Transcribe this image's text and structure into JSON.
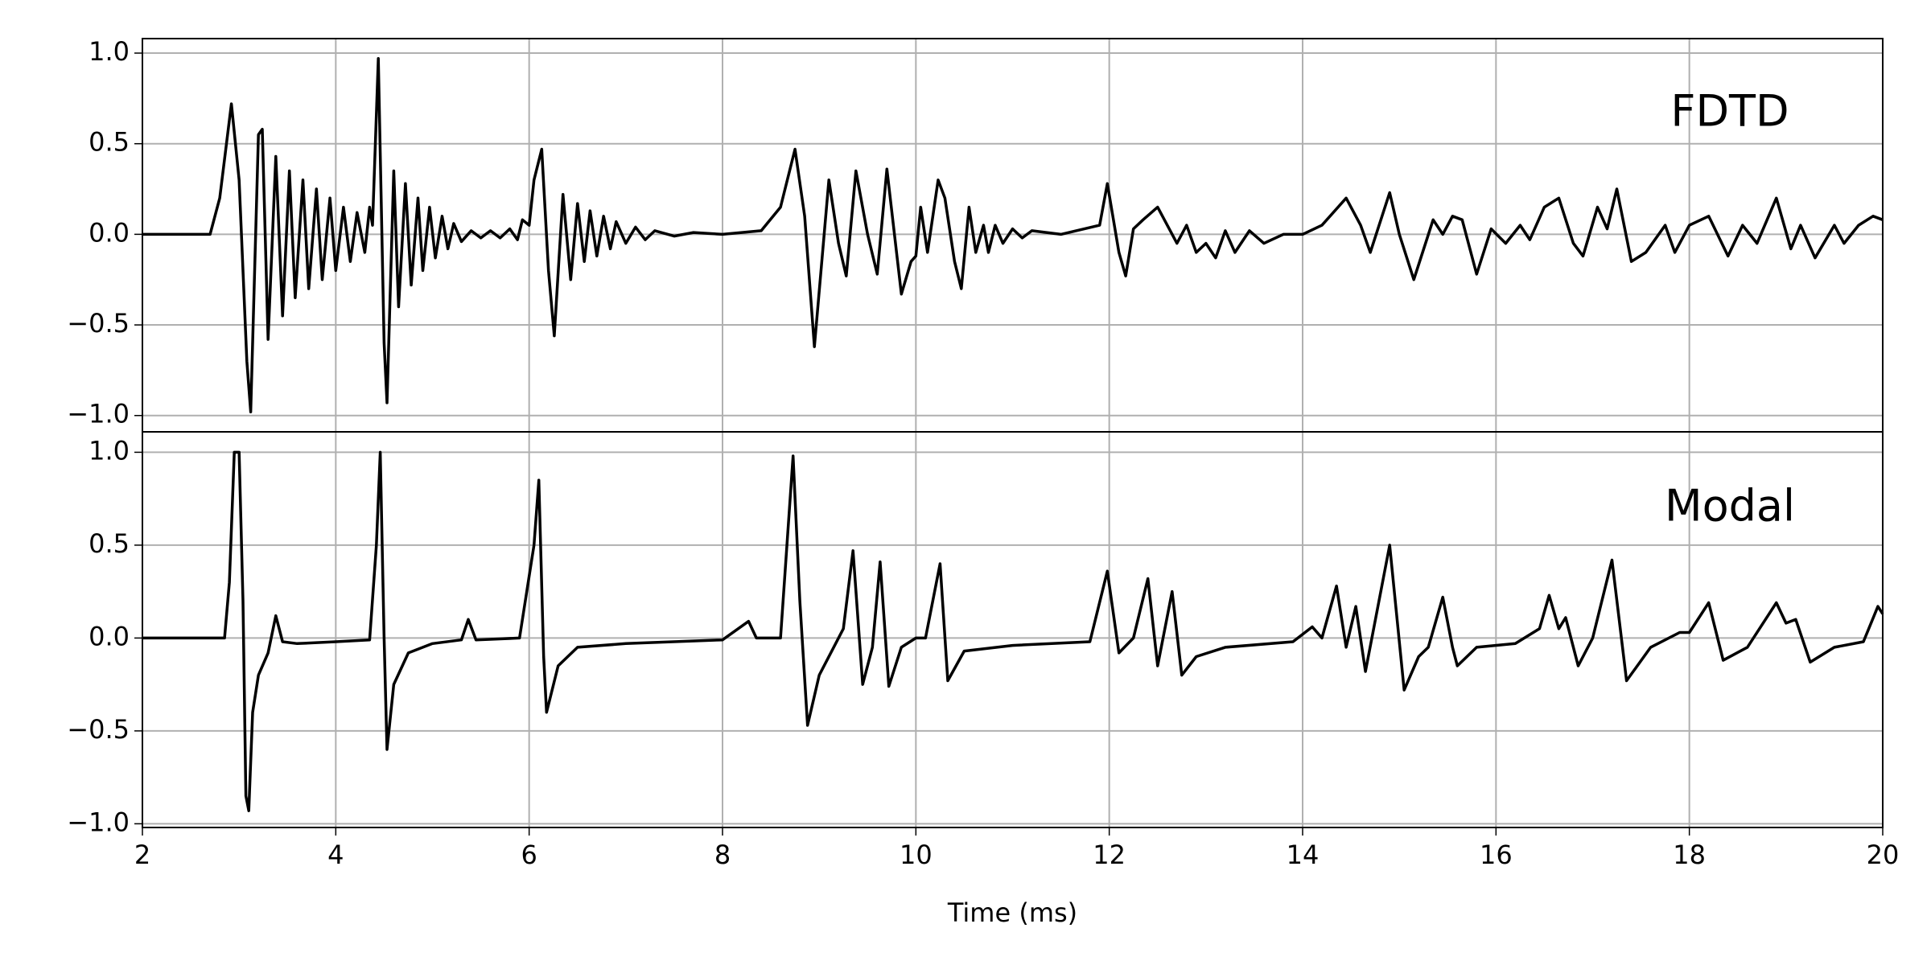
{
  "chart_data": [
    {
      "type": "line",
      "annotation": "FDTD",
      "x": [
        2.0,
        2.7,
        2.8,
        2.92,
        3.0,
        3.08,
        3.12,
        3.2,
        3.24,
        3.3,
        3.38,
        3.45,
        3.52,
        3.58,
        3.66,
        3.72,
        3.8,
        3.86,
        3.94,
        4.0,
        4.08,
        4.15,
        4.22,
        4.3,
        4.35,
        4.38,
        4.44,
        4.5,
        4.53,
        4.6,
        4.65,
        4.72,
        4.78,
        4.85,
        4.9,
        4.97,
        5.03,
        5.1,
        5.16,
        5.22,
        5.3,
        5.4,
        5.5,
        5.6,
        5.7,
        5.8,
        5.88,
        5.93,
        6.0,
        6.05,
        6.13,
        6.2,
        6.26,
        6.35,
        6.43,
        6.5,
        6.57,
        6.63,
        6.7,
        6.77,
        6.84,
        6.9,
        7.0,
        7.1,
        7.2,
        7.3,
        7.5,
        7.7,
        8.0,
        8.4,
        8.6,
        8.75,
        8.85,
        8.95,
        9.1,
        9.2,
        9.28,
        9.38,
        9.5,
        9.6,
        9.7,
        9.8,
        9.85,
        9.95,
        10.0,
        10.05,
        10.12,
        10.23,
        10.3,
        10.4,
        10.47,
        10.55,
        10.62,
        10.7,
        10.75,
        10.82,
        10.9,
        11.0,
        11.1,
        11.2,
        11.5,
        11.9,
        11.98,
        12.1,
        12.17,
        12.25,
        12.35,
        12.5,
        12.6,
        12.7,
        12.8,
        12.9,
        13.0,
        13.1,
        13.2,
        13.3,
        13.45,
        13.6,
        13.8,
        14.0,
        14.2,
        14.45,
        14.6,
        14.7,
        14.9,
        15.0,
        15.15,
        15.35,
        15.45,
        15.55,
        15.65,
        15.8,
        15.95,
        16.1,
        16.25,
        16.35,
        16.5,
        16.65,
        16.8,
        16.9,
        17.05,
        17.15,
        17.25,
        17.4,
        17.55,
        17.75,
        17.85,
        18.0,
        18.2,
        18.4,
        18.55,
        18.7,
        18.9,
        19.05,
        19.15,
        19.3,
        19.5,
        19.6,
        19.75,
        19.9,
        20.0
      ],
      "series": [
        {
          "color": "#000000",
          "values": [
            0,
            0,
            0.2,
            0.72,
            0.3,
            -0.7,
            -0.98,
            0.55,
            0.58,
            -0.58,
            0.43,
            -0.45,
            0.35,
            -0.35,
            0.3,
            -0.3,
            0.25,
            -0.25,
            0.2,
            -0.2,
            0.15,
            -0.15,
            0.12,
            -0.1,
            0.15,
            0.05,
            0.97,
            -0.6,
            -0.93,
            0.35,
            -0.4,
            0.28,
            -0.28,
            0.2,
            -0.2,
            0.15,
            -0.13,
            0.1,
            -0.08,
            0.06,
            -0.04,
            0.02,
            -0.02,
            0.02,
            -0.02,
            0.03,
            -0.03,
            0.08,
            0.05,
            0.3,
            0.47,
            -0.2,
            -0.56,
            0.22,
            -0.25,
            0.17,
            -0.15,
            0.13,
            -0.12,
            0.1,
            -0.08,
            0.07,
            -0.05,
            0.04,
            -0.03,
            0.02,
            -0.01,
            0.01,
            0,
            0.02,
            0.15,
            0.47,
            0.1,
            -0.62,
            0.3,
            -0.05,
            -0.23,
            0.35,
            0,
            -0.22,
            0.36,
            -0.1,
            -0.33,
            -0.15,
            -0.12,
            0.15,
            -0.1,
            0.3,
            0.2,
            -0.15,
            -0.3,
            0.15,
            -0.1,
            0.05,
            -0.1,
            0.05,
            -0.05,
            0.03,
            -0.02,
            0.02,
            0,
            0.05,
            0.28,
            -0.1,
            -0.23,
            0.03,
            0.08,
            0.15,
            0.05,
            -0.05,
            0.05,
            -0.1,
            -0.05,
            -0.13,
            0.02,
            -0.1,
            0.02,
            -0.05,
            0,
            0,
            0.05,
            0.2,
            0.05,
            -0.1,
            0.23,
            0,
            -0.25,
            0.08,
            0,
            0.1,
            0.08,
            -0.22,
            0.03,
            -0.05,
            0.05,
            -0.03,
            0.15,
            0.2,
            -0.05,
            -0.12,
            0.15,
            0.03,
            0.25,
            -0.15,
            -0.1,
            0.05,
            -0.1,
            0.05,
            0.1,
            -0.12,
            0.05,
            -0.05,
            0.2,
            -0.08,
            0.05,
            -0.13,
            0.05,
            -0.05,
            0.05,
            0.1,
            0.08
          ]
        }
      ],
      "xlim": [
        2,
        20
      ],
      "ylim": [
        -1.09,
        1.08
      ],
      "yticks": [
        {
          "value": -1,
          "label": "−1.0"
        },
        {
          "value": -0.5,
          "label": "−0.5"
        },
        {
          "value": 0,
          "label": "0.0"
        },
        {
          "value": 0.5,
          "label": "0.5"
        },
        {
          "value": 1,
          "label": "1.0"
        }
      ],
      "grid": true
    },
    {
      "type": "line",
      "annotation": "Modal",
      "xlabel": "Time (ms)",
      "x": [
        2.0,
        2.85,
        2.9,
        2.95,
        3.0,
        3.04,
        3.07,
        3.1,
        3.14,
        3.2,
        3.3,
        3.38,
        3.45,
        3.6,
        4.0,
        4.35,
        4.42,
        4.46,
        4.5,
        4.53,
        4.6,
        4.75,
        5.0,
        5.3,
        5.37,
        5.45,
        5.9,
        6.05,
        6.1,
        6.15,
        6.18,
        6.3,
        6.5,
        7.0,
        8.0,
        8.27,
        8.35,
        8.6,
        8.73,
        8.8,
        8.88,
        9.0,
        9.15,
        9.25,
        9.35,
        9.45,
        9.55,
        9.63,
        9.72,
        9.85,
        10.0,
        10.1,
        10.25,
        10.33,
        10.5,
        11.0,
        11.8,
        11.98,
        12.1,
        12.25,
        12.4,
        12.5,
        12.65,
        12.75,
        12.9,
        13.2,
        13.9,
        14.1,
        14.2,
        14.35,
        14.45,
        14.55,
        14.65,
        14.9,
        15.05,
        15.2,
        15.3,
        15.45,
        15.55,
        15.6,
        15.8,
        16.2,
        16.45,
        16.55,
        16.65,
        16.72,
        16.85,
        17.0,
        17.2,
        17.35,
        17.6,
        17.9,
        18.0,
        18.2,
        18.35,
        18.6,
        18.9,
        19.0,
        19.1,
        19.25,
        19.5,
        19.8,
        19.95,
        20.0
      ],
      "series": [
        {
          "color": "#000000",
          "values": [
            0,
            0,
            0.3,
            1.0,
            1.0,
            0.2,
            -0.85,
            -0.93,
            -0.4,
            -0.2,
            -0.08,
            0.12,
            -0.02,
            -0.03,
            -0.02,
            -0.01,
            0.5,
            1.0,
            0,
            -0.6,
            -0.25,
            -0.08,
            -0.03,
            -0.01,
            0.1,
            -0.01,
            0,
            0.5,
            0.85,
            -0.1,
            -0.4,
            -0.15,
            -0.05,
            -0.03,
            -0.01,
            0.09,
            0,
            0,
            0.98,
            0.2,
            -0.47,
            -0.2,
            -0.05,
            0.05,
            0.47,
            -0.25,
            -0.05,
            0.41,
            -0.26,
            -0.05,
            0,
            0,
            0.4,
            -0.23,
            -0.07,
            -0.04,
            -0.02,
            0.36,
            -0.08,
            0,
            0.32,
            -0.15,
            0.25,
            -0.2,
            -0.1,
            -0.05,
            -0.02,
            0.06,
            0,
            0.28,
            -0.05,
            0.17,
            -0.18,
            0.5,
            -0.28,
            -0.1,
            -0.05,
            0.22,
            -0.05,
            -0.15,
            -0.05,
            -0.03,
            0.05,
            0.23,
            0.05,
            0.11,
            -0.15,
            0,
            0.42,
            -0.23,
            -0.05,
            0.03,
            0.03,
            0.19,
            -0.12,
            -0.05,
            0.19,
            0.08,
            0.1,
            -0.13,
            -0.05,
            -0.02,
            0.17,
            0.13
          ]
        }
      ],
      "xlim": [
        2,
        20
      ],
      "ylim": [
        -1.02,
        1.11
      ],
      "xticks": [
        2,
        4,
        6,
        8,
        10,
        12,
        14,
        16,
        18,
        20
      ],
      "yticks": [
        {
          "value": -1,
          "label": "−1.0"
        },
        {
          "value": -0.5,
          "label": "−0.5"
        },
        {
          "value": 0,
          "label": "0.0"
        },
        {
          "value": 0.5,
          "label": "0.5"
        },
        {
          "value": 1,
          "label": "1.0"
        }
      ],
      "grid": true
    }
  ]
}
